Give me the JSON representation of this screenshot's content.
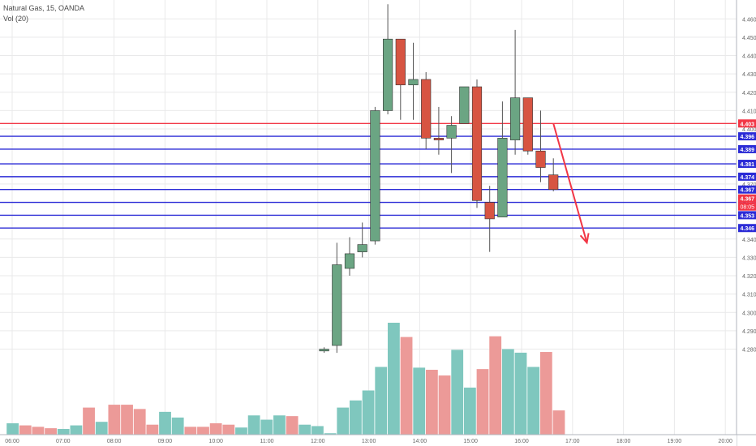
{
  "header": {
    "symbol_line": "Natural Gas, 15, OANDA",
    "volume_line": "Vol (20)"
  },
  "chart_data": {
    "type": "candlestick",
    "interval": "15m",
    "ylim": [
      4.275,
      4.468
    ],
    "y_ticks": [
      "4.460",
      "4.450",
      "4.440",
      "4.430",
      "4.420",
      "4.410",
      "4.400",
      "4.370",
      "4.340",
      "4.330",
      "4.320",
      "4.310",
      "4.300",
      "4.290",
      "4.280"
    ],
    "time_ticks": [
      "06:00",
      "07:00",
      "08:00",
      "09:00",
      "10:00",
      "11:00",
      "12:00",
      "13:00",
      "14:00",
      "15:00",
      "16:00",
      "17:00",
      "18:00",
      "19:00",
      "20:00"
    ],
    "candles": [
      {
        "time": "12:00",
        "open": 4.279,
        "high": 4.281,
        "low": 4.278,
        "close": 4.28
      },
      {
        "time": "12:15",
        "open": 4.282,
        "high": 4.338,
        "low": 4.278,
        "close": 4.326
      },
      {
        "time": "12:30",
        "open": 4.324,
        "high": 4.341,
        "low": 4.32,
        "close": 4.332
      },
      {
        "time": "12:45",
        "open": 4.333,
        "high": 4.349,
        "low": 4.33,
        "close": 4.337
      },
      {
        "time": "13:00",
        "open": 4.339,
        "high": 4.412,
        "low": 4.337,
        "close": 4.41
      },
      {
        "time": "13:15",
        "open": 4.41,
        "high": 4.468,
        "low": 4.408,
        "close": 4.449
      },
      {
        "time": "13:30",
        "open": 4.449,
        "high": 4.449,
        "low": 4.405,
        "close": 4.424
      },
      {
        "time": "13:45",
        "open": 4.424,
        "high": 4.447,
        "low": 4.405,
        "close": 4.427
      },
      {
        "time": "14:00",
        "open": 4.427,
        "high": 4.431,
        "low": 4.389,
        "close": 4.395
      },
      {
        "time": "14:15",
        "open": 4.395,
        "high": 4.412,
        "low": 4.386,
        "close": 4.394
      },
      {
        "time": "14:30",
        "open": 4.395,
        "high": 4.407,
        "low": 4.376,
        "close": 4.402
      },
      {
        "time": "14:45",
        "open": 4.403,
        "high": 4.423,
        "low": 4.403,
        "close": 4.423
      },
      {
        "time": "15:00",
        "open": 4.423,
        "high": 4.427,
        "low": 4.357,
        "close": 4.361
      },
      {
        "time": "15:15",
        "open": 4.36,
        "high": 4.369,
        "low": 4.333,
        "close": 4.351
      },
      {
        "time": "15:30",
        "open": 4.352,
        "high": 4.415,
        "low": 4.352,
        "close": 4.395
      },
      {
        "time": "15:45",
        "open": 4.394,
        "high": 4.454,
        "low": 4.386,
        "close": 4.417
      },
      {
        "time": "16:00",
        "open": 4.417,
        "high": 4.417,
        "low": 4.386,
        "close": 4.388
      },
      {
        "time": "16:15",
        "open": 4.388,
        "high": 4.41,
        "low": 4.371,
        "close": 4.379
      },
      {
        "time": "16:30",
        "open": 4.375,
        "high": 4.384,
        "low": 4.366,
        "close": 4.367
      }
    ],
    "volume_series": {
      "name": "Vol (20)",
      "up_color": "#7fc7be",
      "down_color": "#ec9a98",
      "bars": [
        {
          "v": 16,
          "up": true
        },
        {
          "v": 13,
          "up": false
        },
        {
          "v": 11,
          "up": false
        },
        {
          "v": 9,
          "up": false
        },
        {
          "v": 8,
          "up": true
        },
        {
          "v": 13,
          "up": true
        },
        {
          "v": 38,
          "up": false
        },
        {
          "v": 18,
          "up": true
        },
        {
          "v": 42,
          "up": false
        },
        {
          "v": 42,
          "up": false
        },
        {
          "v": 36,
          "up": false
        },
        {
          "v": 14,
          "up": false
        },
        {
          "v": 32,
          "up": true
        },
        {
          "v": 24,
          "up": true
        },
        {
          "v": 11,
          "up": false
        },
        {
          "v": 11,
          "up": false
        },
        {
          "v": 16,
          "up": false
        },
        {
          "v": 14,
          "up": false
        },
        {
          "v": 10,
          "up": true
        },
        {
          "v": 27,
          "up": true
        },
        {
          "v": 21,
          "up": true
        },
        {
          "v": 27,
          "up": true
        },
        {
          "v": 26,
          "up": false
        },
        {
          "v": 14,
          "up": true
        },
        {
          "v": 12,
          "up": true
        },
        {
          "v": 2,
          "up": true
        },
        {
          "v": 38,
          "up": true
        },
        {
          "v": 48,
          "up": true
        },
        {
          "v": 62,
          "up": true
        },
        {
          "v": 95,
          "up": true
        },
        {
          "v": 157,
          "up": true
        },
        {
          "v": 137,
          "up": false
        },
        {
          "v": 94,
          "up": true
        },
        {
          "v": 91,
          "up": false
        },
        {
          "v": 83,
          "up": false
        },
        {
          "v": 119,
          "up": true
        },
        {
          "v": 66,
          "up": true
        },
        {
          "v": 92,
          "up": false
        },
        {
          "v": 138,
          "up": false
        },
        {
          "v": 120,
          "up": true
        },
        {
          "v": 115,
          "up": true
        },
        {
          "v": 95,
          "up": true
        },
        {
          "v": 116,
          "up": false
        },
        {
          "v": 34,
          "up": false
        }
      ]
    },
    "horizontal_levels": [
      {
        "value": "4.403",
        "color": "#f23645"
      },
      {
        "value": "4.396",
        "color": "#2b2bd6"
      },
      {
        "value": "4.389",
        "color": "#2b2bd6"
      },
      {
        "value": "4.381",
        "color": "#2b2bd6"
      },
      {
        "value": "4.374",
        "color": "#2b2bd6"
      },
      {
        "value": "4.367",
        "color": "#2b2bd6"
      },
      {
        "value": "4.360",
        "color": "#2b2bd6"
      },
      {
        "value": "4.353",
        "color": "#2b2bd6"
      },
      {
        "value": "4.346",
        "color": "#2b2bd6"
      }
    ],
    "current_price": {
      "value": "4.367",
      "countdown": "08:05",
      "color": "#f23645"
    },
    "annotation": {
      "type": "arrow",
      "color": "#f23645",
      "from": {
        "time": "16:30",
        "price": 4.403
      },
      "to": {
        "time": "17:15",
        "price": 4.338
      }
    },
    "colors": {
      "up": "#6ba583",
      "down": "#d75442",
      "grid": "#e9e9ea"
    }
  }
}
